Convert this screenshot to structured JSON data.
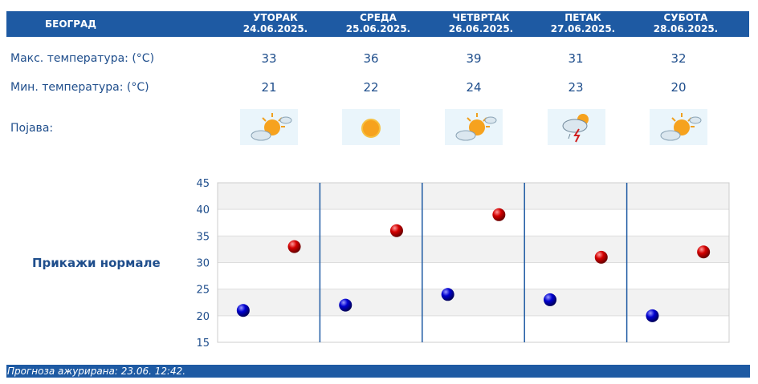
{
  "header": {
    "city": "БЕОГРАД",
    "days": [
      {
        "name": "УТОРАК",
        "date": "24.06.2025."
      },
      {
        "name": "СРЕДА",
        "date": "25.06.2025."
      },
      {
        "name": "ЧЕТВРТАК",
        "date": "26.06.2025."
      },
      {
        "name": "ПЕТАК",
        "date": "27.06.2025."
      },
      {
        "name": "СУБОТА",
        "date": "28.06.2025."
      }
    ]
  },
  "rows": {
    "max_label": "Макс. температура: (°C)",
    "min_label": "Мин. температура: (°C)",
    "phenomenon_label": "Појава:",
    "max": [
      "33",
      "36",
      "39",
      "31",
      "32"
    ],
    "min": [
      "21",
      "22",
      "24",
      "23",
      "20"
    ],
    "icons": [
      "partly-sunny-icon",
      "sun-icon",
      "partly-sunny-icon",
      "thunderstorm-icon",
      "partly-sunny-icon"
    ]
  },
  "normals_link": "Прикажи нормале",
  "footer": "Прогноза ажурирана:  23.06.  12:42.",
  "colors": {
    "header": "#1e5aa3",
    "text": "#1f4e8c",
    "max_marker": "#cc0000",
    "min_marker": "#0000cc"
  },
  "chart_data": {
    "type": "scatter",
    "categories": [
      "24.06.2025.",
      "25.06.2025.",
      "26.06.2025.",
      "27.06.2025.",
      "28.06.2025."
    ],
    "series": [
      {
        "values": [
          21,
          22,
          24,
          23,
          20
        ],
        "color": "#0000cc"
      },
      {
        "values": [
          33,
          36,
          39,
          31,
          32
        ],
        "color": "#cc0000"
      }
    ],
    "ylim": [
      15,
      45
    ],
    "yticks": [
      "15",
      "20",
      "25",
      "30",
      "35",
      "40",
      "45"
    ],
    "grid": true
  }
}
